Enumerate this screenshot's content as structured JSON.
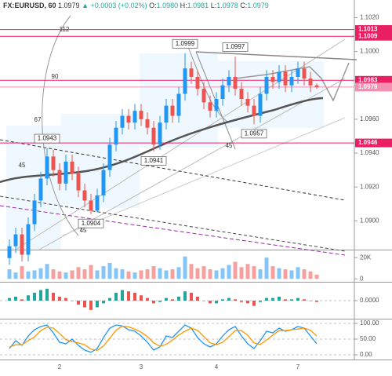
{
  "header": {
    "symbol": "FX:EURUSD, 60",
    "last": "1.0979",
    "arrow": "▲",
    "change": "+0.0003 (+0.02%)",
    "ohlc": [
      {
        "key": "O:",
        "value": "1.0980"
      },
      {
        "key": "H:",
        "value": "1.0981"
      },
      {
        "key": "L:",
        "value": "1.0978"
      },
      {
        "key": "C:",
        "value": "1.0979"
      }
    ]
  },
  "chart_data": [
    {
      "type": "candlestick",
      "categories": [
        null,
        null,
        null,
        null,
        null,
        null,
        null,
        null,
        "2",
        null,
        null,
        null,
        null,
        null,
        null,
        null,
        null,
        null,
        null,
        null,
        null,
        "3",
        null,
        null,
        null,
        null,
        null,
        null,
        null,
        null,
        null,
        null,
        null,
        "4",
        null,
        null,
        null,
        null,
        null,
        null,
        null,
        null,
        null,
        null,
        null,
        null,
        "7",
        null,
        null,
        null
      ],
      "open": [
        1.0878,
        1.0885,
        1.0892,
        1.088,
        1.0898,
        1.0912,
        1.0925,
        1.0938,
        1.093,
        1.0922,
        1.0935,
        1.0928,
        1.0918,
        1.0912,
        1.0906,
        1.0915,
        1.093,
        1.0945,
        1.0955,
        1.0962,
        1.0958,
        1.0965,
        1.096,
        1.0955,
        1.0945,
        1.0958,
        1.0968,
        1.0962,
        1.0975,
        1.099,
        1.0985,
        1.0978,
        1.097,
        1.0965,
        1.0972,
        1.098,
        1.0985,
        1.0978,
        1.0972,
        1.0968,
        1.0962,
        1.0975,
        1.0985,
        1.0982,
        1.0988,
        1.098,
        1.0985,
        1.099,
        1.0984,
        1.098
      ],
      "high": [
        1.0889,
        1.0896,
        1.0896,
        1.0902,
        1.0916,
        1.0929,
        1.0943,
        1.0942,
        1.0934,
        1.0939,
        1.0939,
        1.0932,
        1.0922,
        1.0916,
        1.0919,
        1.0934,
        1.0949,
        1.0959,
        1.0966,
        1.0966,
        1.0969,
        1.0969,
        1.0964,
        1.0959,
        1.0962,
        1.0972,
        1.0972,
        1.0979,
        1.0999,
        1.0994,
        1.0989,
        1.0982,
        1.0974,
        1.0976,
        1.0984,
        1.0989,
        1.0997,
        1.0982,
        1.0976,
        1.0972,
        1.0979,
        1.0989,
        1.0989,
        1.0992,
        1.0992,
        1.0989,
        1.0994,
        1.0994,
        1.0988,
        1.0981
      ],
      "low": [
        1.0874,
        1.0881,
        1.0876,
        1.0876,
        1.0894,
        1.0908,
        1.0921,
        1.0926,
        1.0918,
        1.0918,
        1.0924,
        1.0914,
        1.0908,
        1.0904,
        1.0905,
        1.0911,
        1.0926,
        1.0941,
        1.0951,
        1.0954,
        1.0954,
        1.0956,
        1.0951,
        1.0941,
        1.0942,
        1.0954,
        1.0958,
        1.0958,
        1.0971,
        1.0981,
        1.0974,
        1.0966,
        1.0961,
        1.0961,
        1.0968,
        1.0976,
        1.0974,
        1.0968,
        1.0964,
        1.0957,
        1.0958,
        1.0971,
        1.0978,
        1.0978,
        1.0976,
        1.0976,
        1.0981,
        1.098,
        1.0976,
        1.0978
      ],
      "close": [
        1.0885,
        1.0892,
        1.088,
        1.0898,
        1.0912,
        1.0925,
        1.0938,
        1.093,
        1.0922,
        1.0935,
        1.0928,
        1.0918,
        1.0912,
        1.0906,
        1.0915,
        1.093,
        1.0945,
        1.0955,
        1.0962,
        1.0958,
        1.0965,
        1.096,
        1.0955,
        1.0945,
        1.0958,
        1.0968,
        1.0962,
        1.0975,
        1.099,
        1.0985,
        1.0978,
        1.097,
        1.0965,
        1.0972,
        1.098,
        1.0985,
        1.0978,
        1.0972,
        1.0968,
        1.0962,
        1.0975,
        1.0985,
        1.0982,
        1.0988,
        1.098,
        1.0985,
        1.099,
        1.0984,
        1.098,
        1.0979
      ],
      "up_color": "#2196f3",
      "down_color": "#ef5350",
      "ylim": [
        1.0883,
        1.1023
      ],
      "yticks": [
        {
          "value": 1.09,
          "label": "1.0900"
        },
        {
          "value": 1.092,
          "label": "1.0920"
        },
        {
          "value": 1.094,
          "label": "1.0940"
        },
        {
          "value": 1.096,
          "label": "1.0960"
        },
        {
          "value": 1.098,
          "label": "1.0980"
        },
        {
          "value": 1.1,
          "label": "1.1000"
        },
        {
          "value": 1.102,
          "label": "1.1020"
        }
      ],
      "price_labels": [
        {
          "value": 1.1013,
          "color": "#e91e63"
        },
        {
          "value": 1.1009,
          "color": "#e91e63"
        },
        {
          "value": 1.0983,
          "color": "#e91e63"
        },
        {
          "value": 1.0979,
          "color": "#f48fb1"
        },
        {
          "value": 1.0946,
          "color": "#e91e63"
        }
      ],
      "annotations": [
        "1.0943",
        "1.0904",
        "1.0941",
        "1.0999",
        "1.0997",
        "1.0957"
      ],
      "gann_labels": [
        112,
        90,
        67,
        45,
        45,
        45
      ]
    },
    {
      "type": "bar",
      "name": "volume",
      "values": [
        9000,
        6000,
        12000,
        7000,
        8000,
        10000,
        14000,
        9000,
        7000,
        6000,
        8000,
        11000,
        9000,
        13000,
        8000,
        12000,
        15000,
        10000,
        9000,
        7000,
        6000,
        8000,
        9000,
        12000,
        10000,
        8000,
        9000,
        11000,
        21000,
        14000,
        10000,
        12000,
        9000,
        8000,
        10000,
        13000,
        16000,
        11000,
        14000,
        12000,
        9000,
        20000,
        12000,
        10000,
        9000,
        8000,
        11000,
        9000,
        7000,
        4000
      ],
      "ylim": [
        -2000,
        26000
      ],
      "yticks": [
        {
          "value": 0,
          "label": "0"
        },
        {
          "value": 20000,
          "label": "20K"
        }
      ]
    },
    {
      "type": "histogram",
      "name": "macd",
      "values": [
        0.0002,
        0.0003,
        0.0001,
        0.0004,
        0.0006,
        0.0008,
        0.0009,
        0.0006,
        0.0003,
        0.0002,
        0.0,
        -0.0003,
        -0.0005,
        -0.0007,
        -0.0005,
        -0.0002,
        0.0002,
        0.0006,
        0.0008,
        0.0007,
        0.0006,
        0.0004,
        0.0002,
        -0.0002,
        -0.0001,
        0.0002,
        0.0001,
        0.0003,
        0.0007,
        0.0006,
        0.0003,
        0.0,
        -0.0002,
        -0.0002,
        0.0001,
        0.0002,
        0.0001,
        -0.0001,
        -0.0002,
        -0.0004,
        -0.0001,
        0.0002,
        0.0002,
        0.0003,
        0.0001,
        0.0001,
        0.0002,
        0.0001,
        0.0,
        -0.0001
      ],
      "up_color": "#26a69a",
      "down_color": "#ef5350",
      "ylim": [
        -0.0013,
        0.0013
      ],
      "yticks": [
        {
          "value": 0,
          "label": "0.0000"
        }
      ]
    },
    {
      "type": "line",
      "name": "stochastic",
      "series": [
        {
          "color": "#2196f3",
          "values": [
            20,
            45,
            30,
            60,
            80,
            90,
            95,
            70,
            40,
            35,
            50,
            30,
            15,
            8,
            20,
            55,
            85,
            95,
            92,
            80,
            75,
            60,
            40,
            15,
            25,
            60,
            55,
            75,
            95,
            85,
            55,
            35,
            25,
            35,
            60,
            80,
            90,
            60,
            35,
            20,
            45,
            75,
            70,
            85,
            75,
            80,
            90,
            85,
            60,
            35
          ]
        },
        {
          "color": "#ff9800",
          "values": [
            25,
            32,
            32,
            45,
            57,
            77,
            88,
            85,
            68,
            48,
            42,
            38,
            32,
            18,
            14,
            28,
            53,
            78,
            91,
            89,
            82,
            72,
            58,
            38,
            27,
            33,
            47,
            63,
            75,
            85,
            78,
            58,
            38,
            32,
            40,
            58,
            77,
            77,
            62,
            38,
            33,
            47,
            63,
            77,
            77,
            80,
            82,
            85,
            78,
            60
          ]
        }
      ],
      "ylim": [
        -15,
        110
      ],
      "yticks": [
        {
          "value": 100,
          "label": "100.00"
        },
        {
          "value": 50,
          "label": "50.00"
        },
        {
          "value": 0,
          "label": "0.00"
        }
      ]
    }
  ]
}
